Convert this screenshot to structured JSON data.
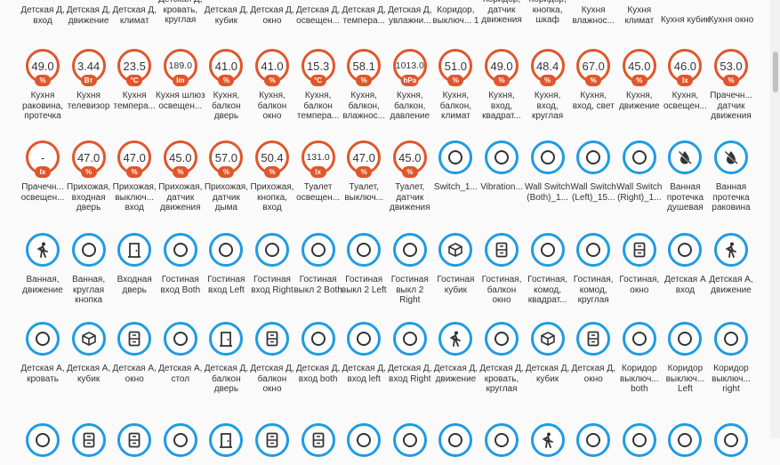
{
  "top_labels": [
    "Детская Д, вход",
    "Детская Д, движение",
    "Детская Д, климат",
    "Детская Д, кровать, круглая",
    "Детская Д, кубик",
    "Детская Д, окно",
    "Детская Д, освещен...",
    "Детская Д, темпера...",
    "Детская Д, увлажни...",
    "Коридор, выключ... 1",
    "Коридор, датчик движения",
    "Коридор, кнопка, шкаф",
    "Кухня влажнос...",
    "Кухня климат",
    "Кухня кубик",
    "Кухня окно"
  ],
  "rows": [
    [
      {
        "type": "sensor",
        "value": "49.0",
        "unit": "%",
        "label": "Кухня раковина, протечка"
      },
      {
        "type": "sensor",
        "value": "3.44",
        "unit": "Вт",
        "label": "Кухня телевизор"
      },
      {
        "type": "sensor",
        "value": "23.5",
        "unit": "°C",
        "label": "Кухня темпера..."
      },
      {
        "type": "sensor",
        "value": "189.0",
        "unit": "lm",
        "label": "Кухня шлюз освещен..."
      },
      {
        "type": "sensor",
        "value": "41.0",
        "unit": "%",
        "label": "Кухня, балкон дверь"
      },
      {
        "type": "sensor",
        "value": "41.0",
        "unit": "%",
        "label": "Кухня, балкон окно"
      },
      {
        "type": "sensor",
        "value": "15.3",
        "unit": "°C",
        "label": "Кухня, балкон темпера..."
      },
      {
        "type": "sensor",
        "value": "58.1",
        "unit": "%",
        "label": "Кухня, балкон, влажнос..."
      },
      {
        "type": "sensor",
        "value": "1013.0",
        "unit": "hPa",
        "label": "Кухня, балкон, давление"
      },
      {
        "type": "sensor",
        "value": "51.0",
        "unit": "%",
        "label": "Кухня, балкон, климат"
      },
      {
        "type": "sensor",
        "value": "49.0",
        "unit": "%",
        "label": "Кухня, вход, квадрат..."
      },
      {
        "type": "sensor",
        "value": "48.4",
        "unit": "%",
        "label": "Кухня, вход, круглая"
      },
      {
        "type": "sensor",
        "value": "67.0",
        "unit": "%",
        "label": "Кухня, вход, свет"
      },
      {
        "type": "sensor",
        "value": "45.0",
        "unit": "%",
        "label": "Кухня, движение"
      },
      {
        "type": "sensor",
        "value": "46.0",
        "unit": "lx",
        "label": "Кухня, освещен..."
      },
      {
        "type": "sensor",
        "value": "53.0",
        "unit": "%",
        "label": "Прачечн... датчик движения"
      }
    ],
    [
      {
        "type": "sensor",
        "value": "-",
        "unit": "lx",
        "label": "Прачечн... освещен..."
      },
      {
        "type": "sensor",
        "value": "47.0",
        "unit": "%",
        "label": "Прихожая, входная дверь"
      },
      {
        "type": "sensor",
        "value": "47.0",
        "unit": "%",
        "label": "Прихожая, выключ... вход"
      },
      {
        "type": "sensor",
        "value": "45.0",
        "unit": "%",
        "label": "Прихожая, датчик движения"
      },
      {
        "type": "sensor",
        "value": "57.0",
        "unit": "%",
        "label": "Прихожая, датчик дыма"
      },
      {
        "type": "sensor",
        "value": "50.4",
        "unit": "%",
        "label": "Прихожая, кнопка, вход"
      },
      {
        "type": "sensor",
        "value": "131.0",
        "unit": "lx",
        "label": "Туалет освещен..."
      },
      {
        "type": "sensor",
        "value": "47.0",
        "unit": "%",
        "label": "Туалет, выключ..."
      },
      {
        "type": "sensor",
        "value": "45.0",
        "unit": "%",
        "label": "Туалет, датчик движения"
      },
      {
        "type": "device",
        "icon": "circle-icon",
        "label": "Switch_1..."
      },
      {
        "type": "device",
        "icon": "circle-icon",
        "label": "Vibration..."
      },
      {
        "type": "device",
        "icon": "circle-icon",
        "label": "Wall Switch (Both)_1..."
      },
      {
        "type": "device",
        "icon": "circle-icon",
        "label": "Wall Switch (Left)_15..."
      },
      {
        "type": "device",
        "icon": "circle-icon",
        "label": "Wall Switch (Right)_1..."
      },
      {
        "type": "device",
        "icon": "water-off-icon",
        "label": "Ванная протечка душевая"
      },
      {
        "type": "device",
        "icon": "water-off-icon",
        "label": "Ванная протечка раковина"
      }
    ],
    [
      {
        "type": "device",
        "icon": "walking-icon",
        "label": "Ванная, движение"
      },
      {
        "type": "device",
        "icon": "circle-icon",
        "label": "Ванная, круглая кнопка"
      },
      {
        "type": "device",
        "icon": "door-icon",
        "label": "Входная дверь"
      },
      {
        "type": "device",
        "icon": "circle-icon",
        "label": "Гостиная вход Both"
      },
      {
        "type": "device",
        "icon": "circle-icon",
        "label": "Гостиная вход Left"
      },
      {
        "type": "device",
        "icon": "circle-icon",
        "label": "Гостиная вход Right"
      },
      {
        "type": "device",
        "icon": "circle-icon",
        "label": "Гостиная выкл 2 Both"
      },
      {
        "type": "device",
        "icon": "circle-icon",
        "label": "Гостиная выкл 2 Left"
      },
      {
        "type": "device",
        "icon": "circle-icon",
        "label": "Гостиная выкл 2 Right"
      },
      {
        "type": "device",
        "icon": "cube-icon",
        "label": "Гостиная кубик"
      },
      {
        "type": "device",
        "icon": "window-icon",
        "label": "Гостиная, балкон окно"
      },
      {
        "type": "device",
        "icon": "circle-icon",
        "label": "Гостиная, комод, квадрат..."
      },
      {
        "type": "device",
        "icon": "circle-icon",
        "label": "Гостиная, комод, круглая"
      },
      {
        "type": "device",
        "icon": "window-icon",
        "label": "Гостиная, окно"
      },
      {
        "type": "device",
        "icon": "circle-icon",
        "label": "Детская А вход"
      },
      {
        "type": "device",
        "icon": "walking-icon",
        "label": "Детская А, движение"
      }
    ],
    [
      {
        "type": "device",
        "icon": "circle-icon",
        "label": "Детская А, кровать"
      },
      {
        "type": "device",
        "icon": "cube-icon",
        "label": "Детская А, кубик"
      },
      {
        "type": "device",
        "icon": "window-icon",
        "label": "Детская А, окно"
      },
      {
        "type": "device",
        "icon": "circle-icon",
        "label": "Детская А, стол"
      },
      {
        "type": "device",
        "icon": "door-icon",
        "label": "Детская Д, балкон дверь"
      },
      {
        "type": "device",
        "icon": "window-icon",
        "label": "Детская Д, балкон окно"
      },
      {
        "type": "device",
        "icon": "circle-icon",
        "label": "Детская Д, вход both"
      },
      {
        "type": "device",
        "icon": "circle-icon",
        "label": "Детская Д, вход left"
      },
      {
        "type": "device",
        "icon": "circle-icon",
        "label": "Детская Д, вход Right"
      },
      {
        "type": "device",
        "icon": "walking-icon",
        "label": "Детская Д, движение"
      },
      {
        "type": "device",
        "icon": "circle-icon",
        "label": "Детская Д, кровать, круглая"
      },
      {
        "type": "device",
        "icon": "cube-icon",
        "label": "Детская Д, кубик"
      },
      {
        "type": "device",
        "icon": "window-icon",
        "label": "Детская Д, окно"
      },
      {
        "type": "device",
        "icon": "circle-icon",
        "label": "Коридор выключ... both"
      },
      {
        "type": "device",
        "icon": "circle-icon",
        "label": "Коридор выключ... Left"
      },
      {
        "type": "device",
        "icon": "circle-icon",
        "label": "Коридор выключ... right"
      }
    ],
    [
      {
        "type": "device",
        "icon": "circle-icon",
        "label": ""
      },
      {
        "type": "device",
        "icon": "window-icon",
        "label": ""
      },
      {
        "type": "device",
        "icon": "window-icon",
        "label": ""
      },
      {
        "type": "device",
        "icon": "circle-icon",
        "label": ""
      },
      {
        "type": "device",
        "icon": "door-icon",
        "label": ""
      },
      {
        "type": "device",
        "icon": "window-icon",
        "label": ""
      },
      {
        "type": "device",
        "icon": "window-icon",
        "label": ""
      },
      {
        "type": "device",
        "icon": "circle-icon",
        "label": ""
      },
      {
        "type": "device",
        "icon": "circle-icon",
        "label": ""
      },
      {
        "type": "device",
        "icon": "circle-icon",
        "label": ""
      },
      {
        "type": "device",
        "icon": "circle-icon",
        "label": ""
      },
      {
        "type": "device",
        "icon": "walking-icon",
        "label": ""
      },
      {
        "type": "device",
        "icon": "circle-icon",
        "label": ""
      },
      {
        "type": "device",
        "icon": "circle-icon",
        "label": ""
      },
      {
        "type": "device",
        "icon": "circle-icon",
        "label": ""
      },
      {
        "type": "device",
        "icon": "circle-icon",
        "label": ""
      }
    ]
  ],
  "colors": {
    "sensor_accent": "#e0562a",
    "device_accent": "#1f9be3"
  }
}
